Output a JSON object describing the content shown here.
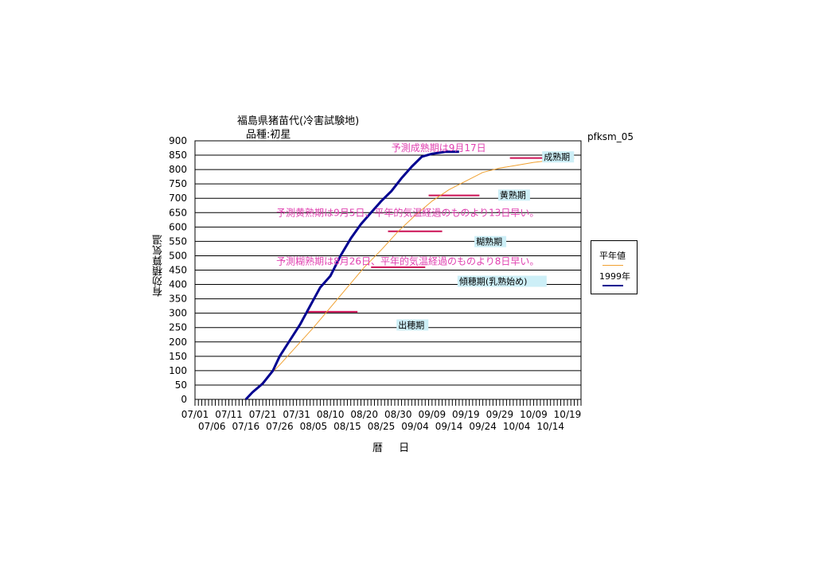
{
  "title_line1": "福島県猪苗代(冷害試験地)",
  "title_line2": "品種:初星",
  "figure_id": "pfksm_05",
  "colors": {
    "normal": "#f0a030",
    "year1999": "#000090",
    "stage_bar": "#cc1155",
    "annotation_text": "#e040b0",
    "stage_label_bg": "#cdeff7"
  },
  "chart_data": {
    "type": "line",
    "xlabel": "暦 日",
    "ylabel": "有効積算気温",
    "ylim": [
      0,
      900
    ],
    "yticks": [
      0,
      50,
      100,
      150,
      200,
      250,
      300,
      350,
      400,
      450,
      500,
      550,
      600,
      650,
      700,
      750,
      800,
      850,
      900
    ],
    "xlim_days": [
      182,
      296
    ],
    "x_tick_labels_row1": [
      {
        "label": "07/01",
        "day": 182
      },
      {
        "label": "07/11",
        "day": 192
      },
      {
        "label": "07/21",
        "day": 202
      },
      {
        "label": "07/31",
        "day": 212
      },
      {
        "label": "08/10",
        "day": 222
      },
      {
        "label": "08/20",
        "day": 232
      },
      {
        "label": "08/30",
        "day": 242
      },
      {
        "label": "09/09",
        "day": 252
      },
      {
        "label": "09/19",
        "day": 262
      },
      {
        "label": "09/29",
        "day": 272
      },
      {
        "label": "10/09",
        "day": 282
      },
      {
        "label": "10/19",
        "day": 292
      }
    ],
    "x_tick_labels_row2": [
      {
        "label": "07/06",
        "day": 187
      },
      {
        "label": "07/16",
        "day": 197
      },
      {
        "label": "07/26",
        "day": 207
      },
      {
        "label": "08/05",
        "day": 217
      },
      {
        "label": "08/15",
        "day": 227
      },
      {
        "label": "08/25",
        "day": 237
      },
      {
        "label": "09/04",
        "day": 247
      },
      {
        "label": "09/14",
        "day": 257
      },
      {
        "label": "09/24",
        "day": 267
      },
      {
        "label": "10/04",
        "day": 277
      },
      {
        "label": "10/14",
        "day": 287
      }
    ],
    "grid": "horizontal",
    "legend_placement": "right",
    "series": [
      {
        "name": "平年値",
        "x": [
          197,
          202,
          207,
          212,
          217,
          222,
          227,
          232,
          237,
          242,
          247,
          252,
          257,
          262,
          267,
          272,
          277,
          282,
          287,
          292,
          294
        ],
        "y": [
          0,
          60,
          120,
          185,
          250,
          320,
          390,
          460,
          520,
          585,
          640,
          690,
          730,
          760,
          790,
          805,
          815,
          825,
          832,
          838,
          840
        ]
      },
      {
        "name": "1999年",
        "x": [
          197,
          199,
          202,
          205,
          207,
          210,
          213,
          216,
          219,
          222,
          225,
          228,
          231,
          234,
          237,
          240,
          243,
          246,
          249,
          252,
          255,
          256,
          260
        ],
        "y": [
          0,
          25,
          55,
          100,
          150,
          205,
          260,
          325,
          390,
          430,
          500,
          560,
          610,
          650,
          690,
          725,
          770,
          810,
          845,
          855,
          860,
          862,
          862
        ]
      }
    ],
    "stage_bars": [
      {
        "name": "出穂期",
        "x_start": 215,
        "x_end": 230,
        "y": 305
      },
      {
        "name": "糊熟期",
        "x_start": 234,
        "x_end": 250,
        "y": 460
      },
      {
        "name": "黄熟期",
        "x_start": 239,
        "x_end": 255,
        "y": 585
      },
      {
        "name": "成熟期",
        "x_start": 251,
        "x_end": 266,
        "y": 710
      },
      {
        "name": "成熟期2",
        "x_start": 275,
        "x_end": 291,
        "y": 840
      }
    ],
    "stage_labels": [
      {
        "text": "成熟期",
        "day": 285,
        "value": 833
      },
      {
        "text": "黄熟期",
        "day": 272,
        "value": 700
      },
      {
        "text": "糊熟期",
        "day": 265,
        "value": 538
      },
      {
        "text": "傾穂期(乳熟始め)",
        "day": 260,
        "value": 400
      },
      {
        "text": "出穂期",
        "day": 242,
        "value": 248
      }
    ],
    "annotations": [
      {
        "text": "予測成熟期は9月17日",
        "day": 240,
        "value": 875
      },
      {
        "text": "予測黄熟期は9月5日、平年的気温経過のものより13日早い。",
        "day": 206,
        "value": 650
      },
      {
        "text": "予測糊熟期は8月26日、平年的気温経過のものより8日早い。",
        "day": 206,
        "value": 480
      }
    ]
  }
}
